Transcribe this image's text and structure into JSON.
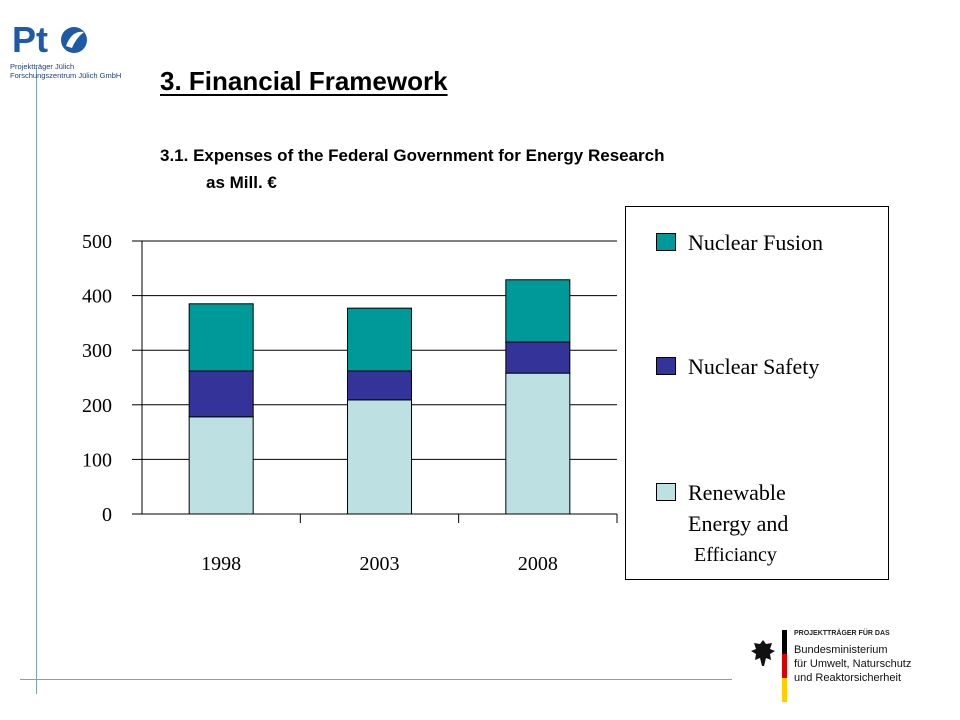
{
  "header": {
    "logo_text": "Pt",
    "logo_line1": "Projektträger Jülich",
    "logo_line2": "Forschungszentrum Jülich GmbH",
    "title": "3. Financial Framework",
    "subtitle_line1": "3.1. Expenses of the Federal Government for Energy Research",
    "subtitle_line2": "as Mill. €"
  },
  "chart_data": {
    "type": "bar",
    "stacked": true,
    "categories": [
      "1998",
      "2003",
      "2008"
    ],
    "series": [
      {
        "name": "Renewable Energy and Efficiancy",
        "color": "#bde0e3",
        "values": [
          178,
          209,
          258
        ]
      },
      {
        "name": "Nuclear Safety",
        "color": "#333399",
        "values": [
          84,
          53,
          57
        ]
      },
      {
        "name": "Nuclear Fusion",
        "color": "#009999",
        "values": [
          123,
          115,
          114
        ]
      }
    ],
    "ylim": [
      0,
      500
    ],
    "yticks": [
      "0",
      "100",
      "200",
      "300",
      "400",
      "500"
    ],
    "grid": true,
    "legend_position": "right"
  },
  "legend": {
    "items": [
      {
        "lines": [
          "Nuclear Fusion"
        ],
        "color": "#009999"
      },
      {
        "lines": [
          "Nuclear Safety"
        ],
        "color": "#333399"
      },
      {
        "lines": [
          "Renewable",
          "Energy and",
          "Efficiancy"
        ],
        "color": "#bde0e3"
      }
    ]
  },
  "footer": {
    "ministry_header": "PROJEKTTRÄGER FÜR DAS",
    "ministry_line1": "Bundesministerium",
    "ministry_line2": "für Umwelt, Naturschutz",
    "ministry_line3": "und Reaktorsicherheit"
  }
}
